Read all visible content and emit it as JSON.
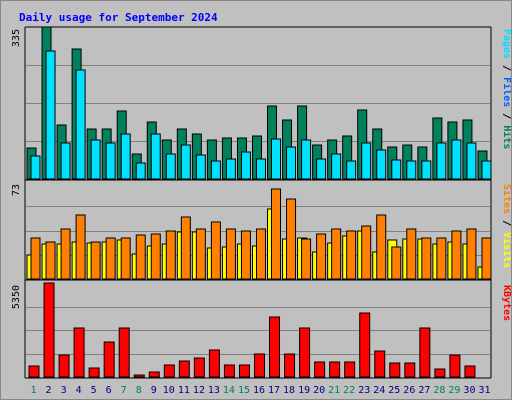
{
  "chart_data": {
    "title": "Daily usage for September 2024",
    "type": "bar",
    "days": [
      "1",
      "2",
      "3",
      "4",
      "5",
      "6",
      "7",
      "8",
      "9",
      "10",
      "11",
      "12",
      "13",
      "14",
      "15",
      "16",
      "17",
      "18",
      "19",
      "20",
      "21",
      "22",
      "23",
      "24",
      "25",
      "26",
      "27",
      "28",
      "29",
      "30",
      "31"
    ],
    "weekend_days": [
      "1",
      "7",
      "8",
      "14",
      "15",
      "21",
      "22",
      "28",
      "29"
    ],
    "colors": {
      "hits": "#00805c",
      "files": "#00e0ff",
      "visits": "#ffff00",
      "sites": "#ff8000",
      "kbytes": "#ff0000",
      "weekend_label": "#00805c",
      "day_label": "#000080",
      "title": "#0000ff",
      "panel_bg": "#c0c0c0"
    },
    "panels": [
      {
        "id": "hits-files",
        "ymax_label": "335",
        "ymax": 335,
        "right_label": [
          {
            "text": "Pages",
            "color": "#00e0ff"
          },
          {
            "text": " / ",
            "color": "#000000"
          },
          {
            "text": "Files",
            "color": "#0060ff"
          },
          {
            "text": " / ",
            "color": "#000000"
          },
          {
            "text": "Hits",
            "color": "#00805c"
          }
        ],
        "series": [
          {
            "key": "hits",
            "color": "#00805c",
            "values": [
              68,
              335,
              118,
              286,
              110,
              110,
              150,
              55,
              125,
              85,
              110,
              100,
              85,
              90,
              90,
              95,
              160,
              130,
              160,
              75,
              85,
              95,
              153,
              110,
              70,
              75,
              70,
              135,
              125,
              130,
              62
            ]
          },
          {
            "key": "files",
            "color": "#00e0ff",
            "values": [
              50,
              283,
              80,
              240,
              85,
              80,
              100,
              35,
              100,
              55,
              75,
              52,
              40,
              45,
              60,
              45,
              88,
              70,
              85,
              45,
              55,
              40,
              80,
              65,
              42,
              40,
              40,
              80,
              85,
              80,
              40
            ]
          }
        ]
      },
      {
        "id": "visits-sites",
        "ymax_label": "73",
        "ymax": 73,
        "right_label": [
          {
            "text": "Sites",
            "color": "#ff8000"
          },
          {
            "text": " / ",
            "color": "#000000"
          },
          {
            "text": "Visits",
            "color": "#ffff00"
          }
        ],
        "series": [
          {
            "key": "visits",
            "color": "#ffff00",
            "values": [
              18,
              26,
              26,
              28,
              27,
              28,
              29,
              19,
              25,
              26,
              35,
              35,
              23,
              24,
              26,
              25,
              53,
              30,
              31,
              20,
              27,
              32,
              36,
              20,
              29,
              30,
              30,
              26,
              28,
              26,
              9
            ]
          },
          {
            "key": "sites",
            "color": "#ff8000",
            "values": [
              31,
              28,
              38,
              48,
              28,
              31,
              31,
              33,
              34,
              36,
              47,
              38,
              43,
              38,
              36,
              38,
              68,
              60,
              30,
              34,
              38,
              36,
              40,
              48,
              24,
              38,
              31,
              31,
              36,
              38,
              31
            ]
          }
        ]
      },
      {
        "id": "kbytes",
        "ymax_label": "5350",
        "ymax": 5350,
        "right_label": [
          {
            "text": "KBytes",
            "color": "#ff0000"
          }
        ],
        "series": [
          {
            "key": "kbytes",
            "color": "#ff0000",
            "values": [
              600,
              5350,
              1270,
              2810,
              540,
              2010,
              2810,
              140,
              260,
              700,
              920,
              1070,
              1550,
              660,
              710,
              1330,
              3430,
              1300,
              2810,
              840,
              840,
              870,
              3670,
              1500,
              800,
              820,
              2810,
              440,
              1270,
              620,
              0
            ]
          }
        ]
      }
    ]
  }
}
